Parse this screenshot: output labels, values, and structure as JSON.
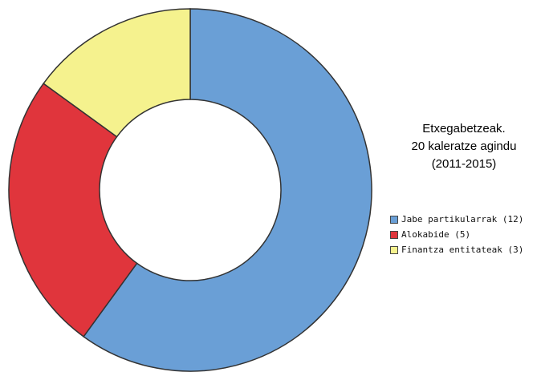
{
  "chart_data": {
    "type": "pie",
    "title_lines": [
      "Etxegabetzeak.",
      "20 kaleratze agindu",
      "(2011-2015)"
    ],
    "slices": [
      {
        "label": "Jabe partikularrak (12)",
        "value": 12,
        "color": "#6a9fd6"
      },
      {
        "label": "Alokabide (5)",
        "value": 5,
        "color": "#e0353c"
      },
      {
        "label": "Finantza entitateak (3)",
        "value": 3,
        "color": "#f5f28e"
      }
    ],
    "donut": true,
    "start": "12 o'clock",
    "direction": "clockwise",
    "legend_position": "right"
  }
}
